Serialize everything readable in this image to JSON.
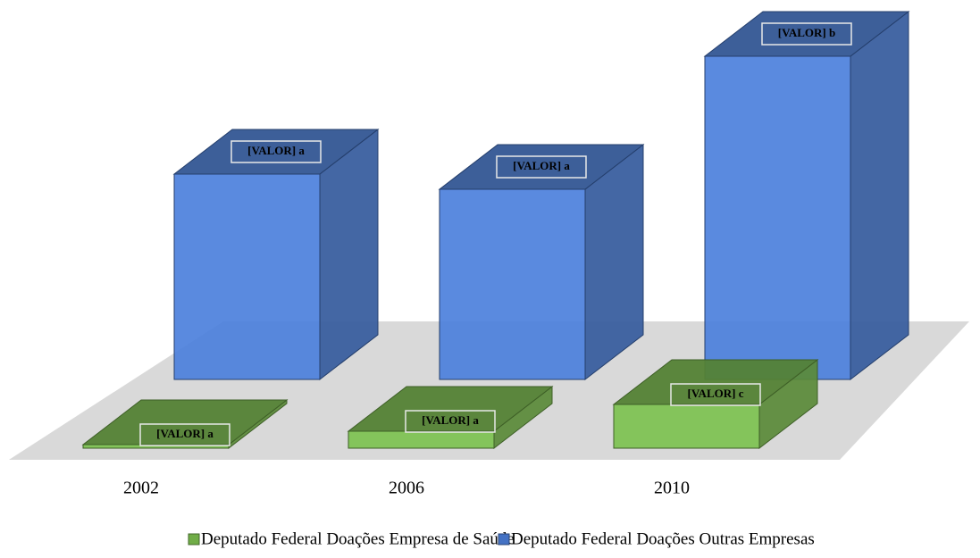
{
  "chart_data": {
    "type": "bar",
    "categories": [
      "2002",
      "2006",
      "2010"
    ],
    "series": [
      {
        "name": "Deputado Federal Doações Empresa de Saúde",
        "color": "#70ad47",
        "values": [
          4,
          19,
          49
        ],
        "value_labels": [
          "[VALOR] a",
          "[VALOR] a",
          "[VALOR] c"
        ]
      },
      {
        "name": "Deputado Federal Doações Outras Empresas",
        "color": "#4472c4",
        "values": [
          230,
          213,
          362
        ],
        "value_labels": [
          "[VALOR] a",
          "[VALOR] a",
          "[VALOR] b"
        ]
      }
    ]
  }
}
